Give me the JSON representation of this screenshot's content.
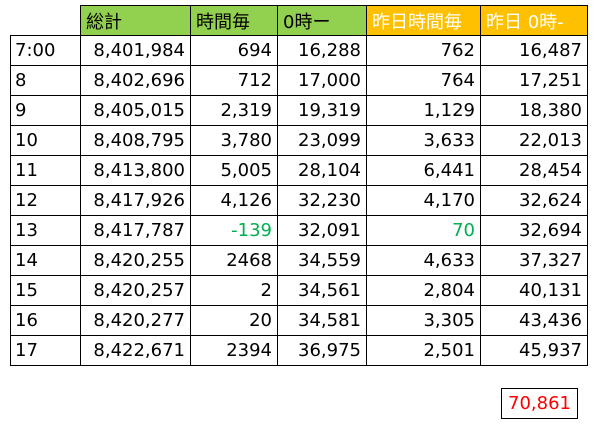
{
  "table": {
    "headers": [
      "総計",
      "時間毎",
      "0時ー",
      "昨日時間毎",
      "昨日 0時-"
    ],
    "rows": [
      {
        "time": "7:00",
        "cells": [
          "8,401,984",
          "694",
          "16,288",
          "762",
          "16,487"
        ]
      },
      {
        "time": "8",
        "cells": [
          "8,402,696",
          "712",
          "17,000",
          "764",
          "17,251"
        ]
      },
      {
        "time": "9",
        "cells": [
          "8,405,015",
          "2,319",
          "19,319",
          "1,129",
          "18,380"
        ]
      },
      {
        "time": "10",
        "cells": [
          "8,408,795",
          "3,780",
          "23,099",
          "3,633",
          "22,013"
        ]
      },
      {
        "time": "11",
        "cells": [
          "8,413,800",
          "5,005",
          "28,104",
          "6,441",
          "28,454"
        ]
      },
      {
        "time": "12",
        "cells": [
          "8,417,926",
          "4,126",
          "32,230",
          "4,170",
          "32,624"
        ]
      },
      {
        "time": "13",
        "cells": [
          "8,417,787",
          "-139",
          "32,091",
          "70",
          "32,694"
        ]
      },
      {
        "time": "14",
        "cells": [
          "8,420,255",
          "2468",
          "34,559",
          "4,633",
          "37,327"
        ]
      },
      {
        "time": "15",
        "cells": [
          "8,420,257",
          "2",
          "34,561",
          "2,804",
          "40,131"
        ]
      },
      {
        "time": "16",
        "cells": [
          "8,420,277",
          "20",
          "34,581",
          "3,305",
          "43,436"
        ]
      },
      {
        "time": "17",
        "cells": [
          "8,422,671",
          "2394",
          "36,975",
          "2,501",
          "45,937"
        ]
      }
    ]
  },
  "total": "70,861",
  "colors": {
    "header_green": "#92d050",
    "header_orange": "#ffc000",
    "highlight_green_text": "#00b050",
    "total_red_text": "#ff0000"
  }
}
